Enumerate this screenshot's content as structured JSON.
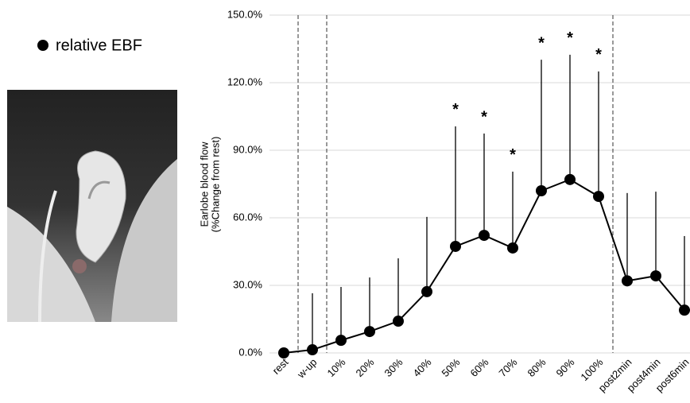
{
  "chart_data": {
    "type": "line",
    "ylabel": [
      "Earlobe blood flow",
      "(%Change from rest)"
    ],
    "categories": [
      "rest",
      "w-up",
      "10%",
      "20%",
      "30%",
      "40%",
      "50%",
      "60%",
      "70%",
      "80%",
      "90%",
      "100%",
      "post2min",
      "post4min",
      "post6min"
    ],
    "series": [
      {
        "name": "relative EBF",
        "color": "#000000",
        "values": [
          0,
          1.4,
          5.6,
          9.5,
          14.1,
          27.2,
          47.3,
          52.2,
          46.6,
          72,
          77,
          69.5,
          32,
          34.2,
          19
        ],
        "errors": [
          0,
          25.1,
          23.7,
          24,
          27.9,
          33.2,
          53.3,
          45.2,
          33.9,
          58.2,
          55.4,
          55.5,
          39,
          37.4,
          32.9
        ]
      }
    ],
    "annotations": [
      {
        "x": "50%",
        "text": "*"
      },
      {
        "x": "60%",
        "text": "*"
      },
      {
        "x": "70%",
        "text": "*"
      },
      {
        "x": "80%",
        "text": "*"
      },
      {
        "x": "90%",
        "text": "*"
      },
      {
        "x": "100%",
        "text": "*"
      }
    ],
    "dividers_after": [
      "rest",
      "w-up",
      "100%"
    ],
    "ylim": [
      0,
      150
    ],
    "yticks": [
      {
        "value": 0,
        "label": "0.0%"
      },
      {
        "value": 30,
        "label": "30.0%"
      },
      {
        "value": 60,
        "label": "60.0%"
      },
      {
        "value": 90,
        "label": "90.0%"
      },
      {
        "value": 120,
        "label": "120.0%"
      },
      {
        "value": 150,
        "label": "150.0%"
      }
    ],
    "grid": true
  }
}
